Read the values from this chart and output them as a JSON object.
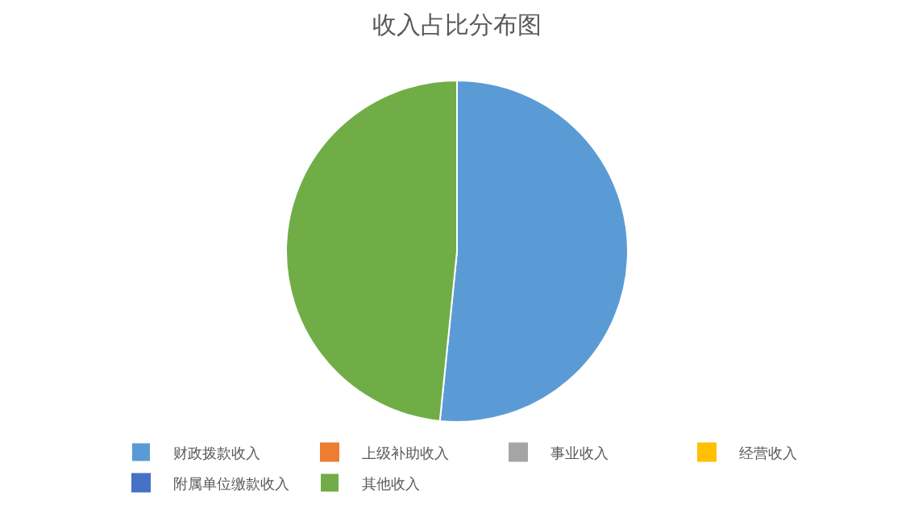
{
  "chart_data": {
    "type": "pie",
    "title": "收入占比分布图",
    "categories": [
      "财政拨款收入",
      "上级补助收入",
      "事业收入",
      "经营收入",
      "附属单位缴款收入",
      "其他收入"
    ],
    "values": [
      51.6,
      0,
      0,
      0,
      0,
      48.4
    ],
    "colors": [
      "#5b9bd5",
      "#ed7d31",
      "#a5a5a5",
      "#ffc000",
      "#4472c4",
      "#70ad47"
    ],
    "legend": "bottom"
  }
}
